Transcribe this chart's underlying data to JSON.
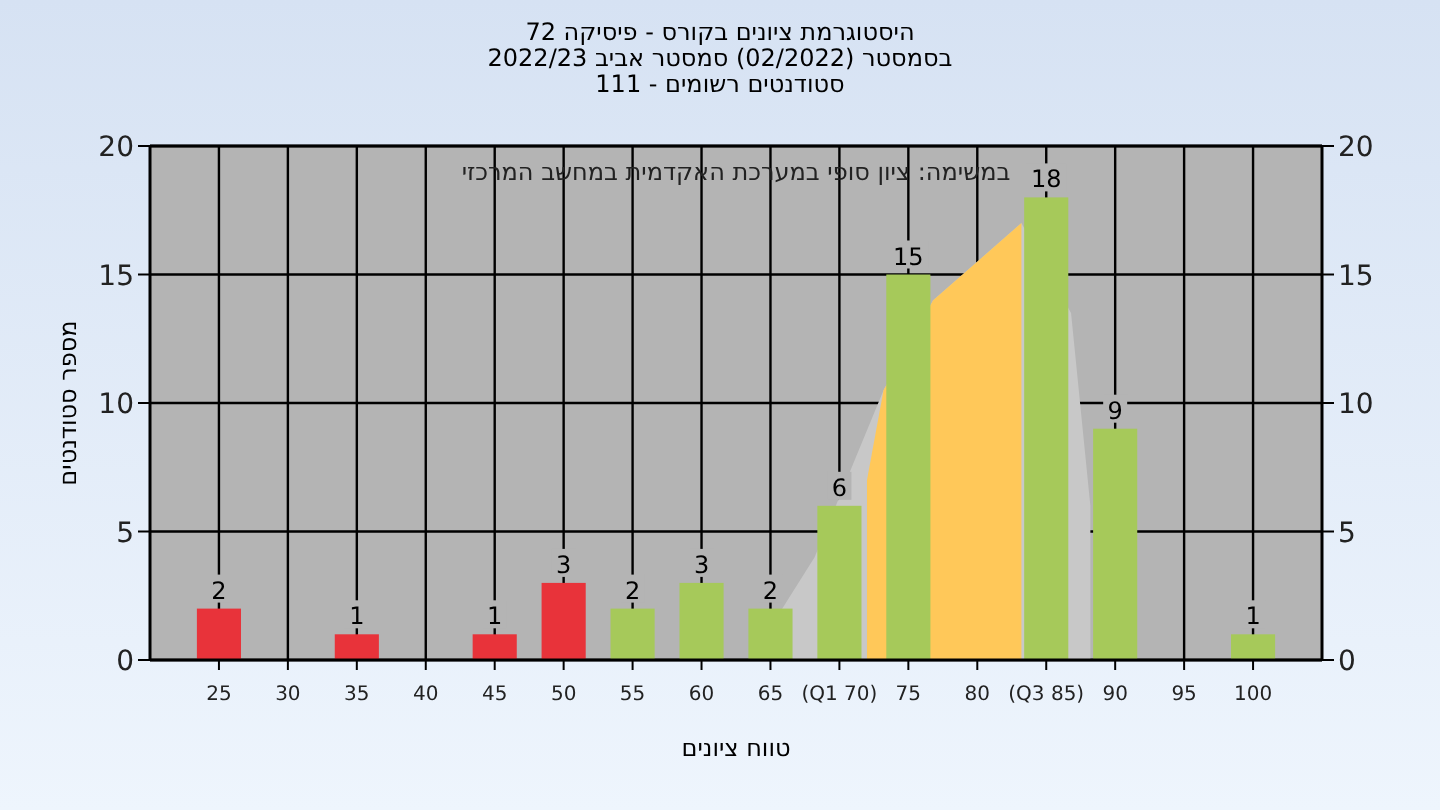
{
  "chart_data": {
    "type": "bar",
    "title": "היסטוגרמת ציונים בקורס - פיסיקה 72",
    "subtitle": [
      "בסמסטר (02/2022) סמסטר אביב 2022/23",
      "סטודנטים רשומים - 111"
    ],
    "annotations": [
      "במשימה: ציון סופי במערכת האקדמית במחשב המרכזי"
    ],
    "xlabel": "טווח ציונים",
    "ylabel": "מספר סטודנטים",
    "xlim": [
      20,
      105
    ],
    "xticks": [
      25,
      30,
      35,
      40,
      45,
      50,
      55,
      60,
      65,
      {
        "value": 70,
        "label": "(Q1 70)"
      },
      75,
      80,
      {
        "value": 85,
        "label": "(Q3 85)"
      },
      90,
      95,
      100
    ],
    "ylim": [
      0,
      20
    ],
    "yticks": [
      0,
      5,
      10,
      15,
      20
    ],
    "y2lim": [
      0,
      20
    ],
    "y2ticks": [
      0,
      5,
      10,
      15,
      20
    ],
    "grid": true,
    "legend": false,
    "series": [
      {
        "type": "area",
        "color": "#c8c8c8",
        "x": [
          63.5,
          68.2,
          73.2,
          76.8,
          83.2,
          86.8,
          88.2,
          88.2
        ],
        "values": [
          0,
          4,
          10.5,
          14,
          17,
          13.5,
          6,
          0
        ]
      },
      {
        "type": "area",
        "color": "#ffc859",
        "x": [
          72,
          72,
          73.2,
          76.8,
          83.2,
          83.2
        ],
        "values": [
          0,
          7,
          10.5,
          14,
          17,
          0
        ]
      },
      {
        "type": "bar",
        "x": [
          25,
          30,
          35,
          40,
          45,
          50,
          55,
          60,
          65,
          70,
          75,
          80,
          85,
          90,
          95,
          100
        ],
        "values": [
          2,
          0,
          1,
          0,
          1,
          3,
          2,
          3,
          2,
          6,
          15,
          0,
          18,
          9,
          0,
          1
        ],
        "colors": [
          "#e8333a",
          "#e8333a",
          "#e8333a",
          "#e8333a",
          "#e8333a",
          "#e8333a",
          "#a6c95a",
          "#a6c95a",
          "#a6c95a",
          "#a6c95a",
          "#a6c95a",
          "#a6c95a",
          "#a6c95a",
          "#a6c95a",
          "#a6c95a",
          "#a6c95a"
        ],
        "value_labels": [
          "2",
          null,
          "1",
          null,
          "1",
          "3",
          "2",
          "3",
          "2",
          "6",
          "15",
          null,
          "18",
          "9",
          null,
          "1"
        ]
      }
    ]
  }
}
